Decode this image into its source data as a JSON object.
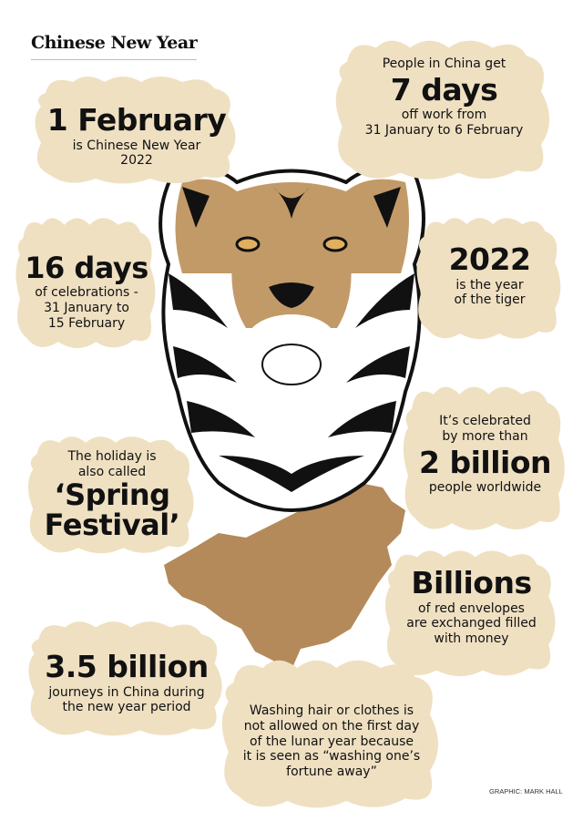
{
  "header": {
    "title": "Chinese New Year"
  },
  "facts": [
    {
      "headline": "1 February",
      "lines": [
        "is Chinese New Year",
        "2022"
      ]
    },
    {
      "pre": "People in China get",
      "headline": "7 days",
      "lines": [
        "off work from",
        "31 January to 6 February"
      ]
    },
    {
      "headline": "16 days",
      "lines": [
        "of celebrations -",
        "31 January to",
        "15 February"
      ]
    },
    {
      "headline": "2022",
      "lines": [
        "is the year",
        "of the tiger"
      ]
    },
    {
      "pre_lines": [
        "It’s celebrated",
        "by more than"
      ],
      "headline": "2 billion",
      "lines": [
        "people worldwide"
      ]
    },
    {
      "pre_lines": [
        "The holiday is",
        "also called"
      ],
      "headline_lines": [
        "‘Spring",
        "Festival’"
      ]
    },
    {
      "headline": "Billions",
      "lines": [
        "of red envelopes",
        "are exchanged filled",
        "with money"
      ]
    },
    {
      "headline": "3.5 billion",
      "lines": [
        "journeys in China during",
        "the new year period"
      ]
    },
    {
      "lines": [
        "Washing hair or clothes is",
        "not allowed on the first day",
        "of the lunar year because",
        "it is seen as “washing one’s",
        "fortune away”"
      ]
    }
  ],
  "credit": "GRAPHIC: MARK HALL",
  "colors": {
    "cloud": "#efe0c2",
    "tiger_tan": "#c29a68",
    "map": "#b48a5a",
    "stripe": "#111111"
  },
  "illustrations": [
    "tiger-head",
    "china-map"
  ]
}
